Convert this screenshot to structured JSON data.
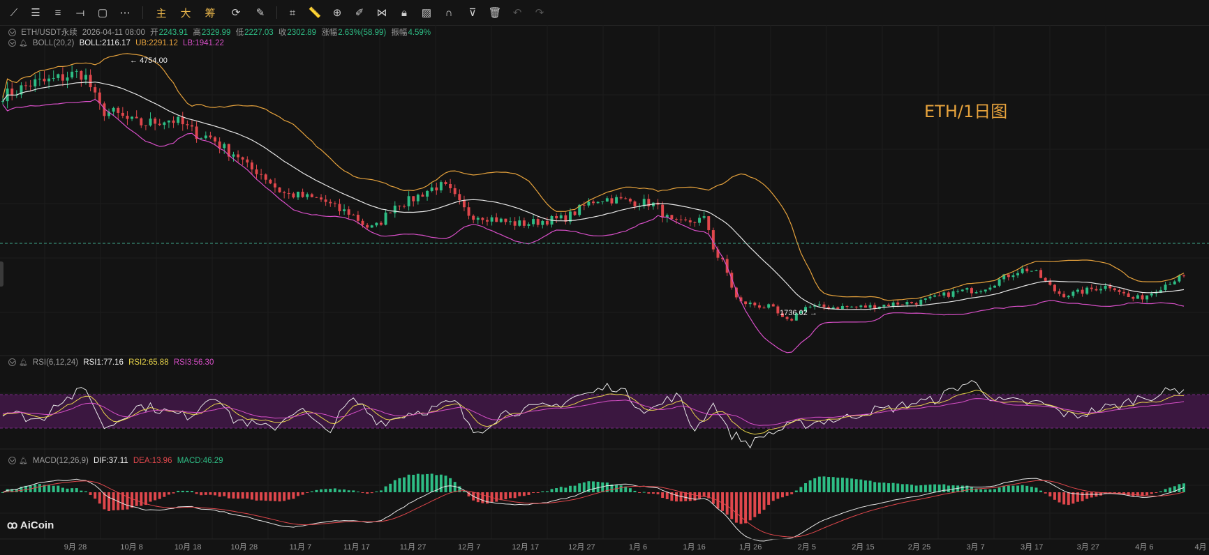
{
  "toolbar": {
    "icons": [
      "trend-line-icon",
      "horizontal-lines-icon",
      "parallel-lines-icon",
      "horizontal-ray-icon",
      "rectangle-icon",
      "more-icon"
    ],
    "cn_buttons": [
      "主",
      "大",
      "筹"
    ],
    "icons2": [
      "replay-icon",
      "measure-icon",
      "alert-icon",
      "zoom-icon",
      "brush-icon",
      "pattern-icon",
      "lock-icon",
      "image-edit-icon",
      "magnet-icon",
      "filter-icon",
      "delete-icon",
      "undo-icon",
      "redo-icon"
    ]
  },
  "main_legend": {
    "symbol": "ETH/USDT永续",
    "date": "2026-04-11 08:00",
    "open_label": "开",
    "open": "2243.91",
    "high_label": "高",
    "high": "2329.99",
    "low_label": "低",
    "low": "2227.03",
    "close_label": "收",
    "close": "2302.89",
    "change_label": "涨幅",
    "change": "2.63%(58.99)",
    "amp_label": "振幅",
    "amp": "4.59%"
  },
  "boll_legend": {
    "name": "BOLL(20,2)",
    "boll": "BOLL:2116.17",
    "ub": "UB:2291.12",
    "lb": "LB:1941.22"
  },
  "rsi_legend": {
    "name": "RSI(6,12,24)",
    "rsi1": "RSI1:77.16",
    "rsi2": "RSI2:65.88",
    "rsi3": "RSI3:56.30"
  },
  "macd_legend": {
    "name": "MACD(12,26,9)",
    "dif": "DIF:37.11",
    "dea": "DEA:13.96",
    "macd": "MACD:46.29"
  },
  "watermark": "ETH/1日图",
  "logo": "AiCoin",
  "colors": {
    "up": "#2ebd85",
    "down": "#e0474c",
    "ub": "#e6a23c",
    "mid": "#e8e8e8",
    "lb": "#d84fc8",
    "rsi1": "#e8e8e8",
    "rsi2": "#e8d44a",
    "rsi3": "#d84fc8",
    "dif": "#e8e8e8",
    "dea": "#e0474c",
    "band": "#3b1740"
  },
  "chart_data": {
    "type": "candlestick",
    "x_ticks": [
      "9月 28",
      "10月 8",
      "10月 18",
      "10月 28",
      "11月 7",
      "11月 17",
      "11月 27",
      "12月 7",
      "12月 17",
      "12月 27",
      "1月 6",
      "1月 16",
      "1月 26",
      "2月 5",
      "2月 15",
      "2月 25",
      "3月 7",
      "3月 17",
      "3月 27",
      "4月 6",
      "4月"
    ],
    "annotations": {
      "high": "4754.00",
      "low": "1736.02"
    },
    "price_anchors": [
      [
        0,
        4500
      ],
      [
        8,
        4650
      ],
      [
        17,
        4754
      ],
      [
        22,
        4300
      ],
      [
        30,
        4150
      ],
      [
        36,
        4200
      ],
      [
        44,
        4000
      ],
      [
        50,
        3800
      ],
      [
        54,
        3600
      ],
      [
        62,
        3300
      ],
      [
        68,
        3250
      ],
      [
        74,
        3100
      ],
      [
        80,
        2900
      ],
      [
        86,
        3200
      ],
      [
        95,
        3400
      ],
      [
        102,
        3050
      ],
      [
        112,
        2950
      ],
      [
        120,
        3000
      ],
      [
        130,
        3250
      ],
      [
        140,
        3200
      ],
      [
        146,
        2950
      ],
      [
        152,
        3000
      ],
      [
        155,
        2550
      ],
      [
        160,
        2000
      ],
      [
        166,
        1950
      ],
      [
        170,
        1780
      ],
      [
        174,
        1950
      ],
      [
        186,
        1950
      ],
      [
        196,
        2000
      ],
      [
        210,
        2150
      ],
      [
        222,
        2400
      ],
      [
        230,
        2100
      ],
      [
        240,
        2200
      ],
      [
        245,
        2050
      ],
      [
        256,
        2300
      ]
    ],
    "rsi_anchors": [
      [
        0,
        50
      ],
      [
        8,
        40
      ],
      [
        12,
        62
      ],
      [
        18,
        75
      ],
      [
        22,
        32
      ],
      [
        30,
        56
      ],
      [
        40,
        45
      ],
      [
        46,
        70
      ],
      [
        50,
        40
      ],
      [
        58,
        30
      ],
      [
        64,
        52
      ],
      [
        70,
        28
      ],
      [
        76,
        62
      ],
      [
        82,
        38
      ],
      [
        90,
        50
      ],
      [
        98,
        60
      ],
      [
        102,
        26
      ],
      [
        110,
        50
      ],
      [
        118,
        55
      ],
      [
        126,
        70
      ],
      [
        132,
        80
      ],
      [
        140,
        52
      ],
      [
        146,
        68
      ],
      [
        150,
        30
      ],
      [
        154,
        58
      ],
      [
        158,
        22
      ],
      [
        162,
        12
      ],
      [
        166,
        24
      ],
      [
        172,
        34
      ],
      [
        180,
        40
      ],
      [
        190,
        52
      ],
      [
        200,
        62
      ],
      [
        210,
        84
      ],
      [
        216,
        62
      ],
      [
        224,
        60
      ],
      [
        232,
        45
      ],
      [
        240,
        55
      ],
      [
        248,
        68
      ],
      [
        256,
        77
      ]
    ],
    "rsi_band": [
      30,
      70
    ],
    "bars": 257
  }
}
